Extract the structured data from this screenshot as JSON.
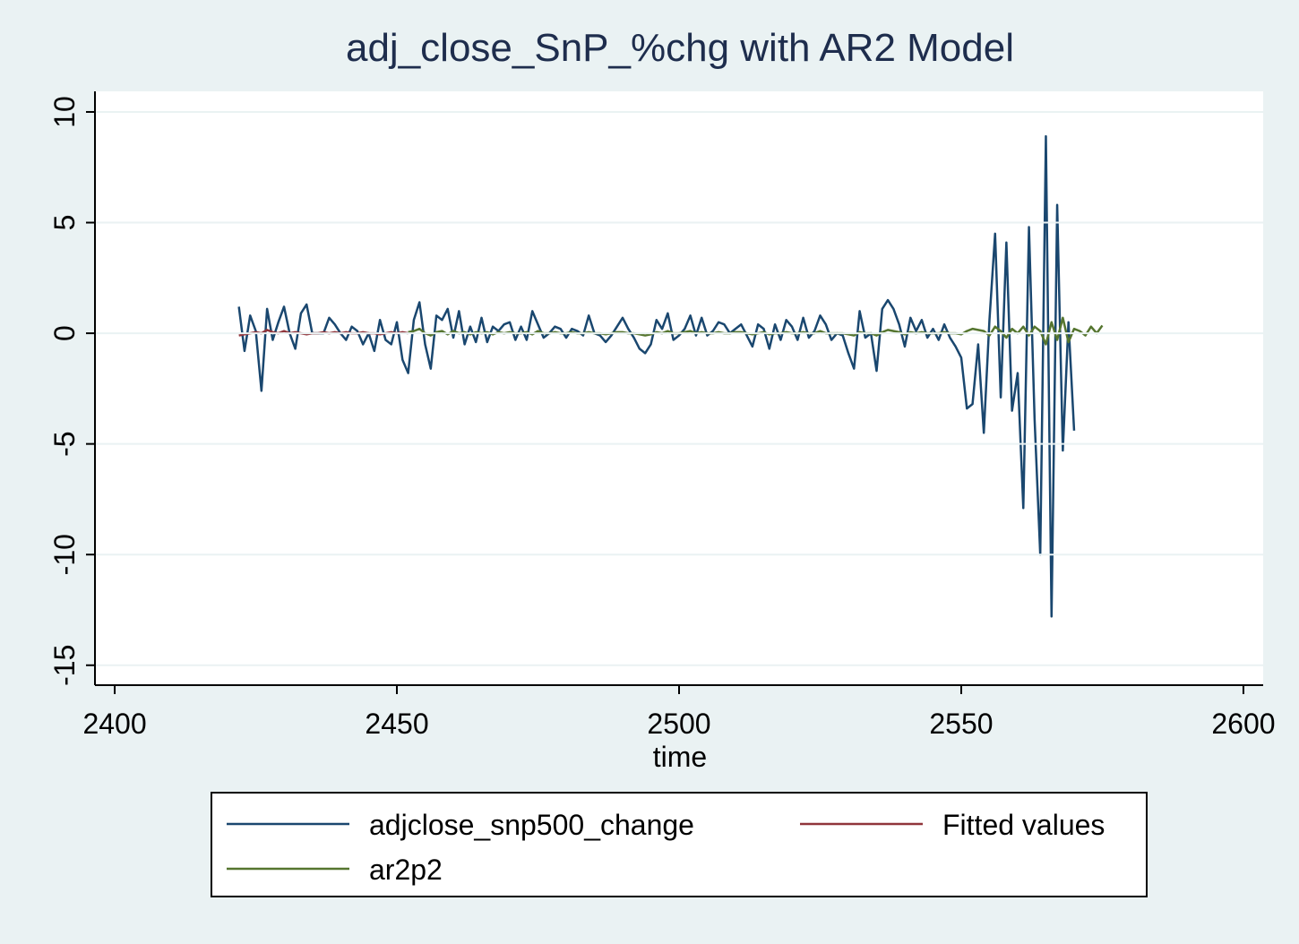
{
  "chart_data": {
    "type": "line",
    "title": "adj_close_SnP_%chg with AR2 Model",
    "x_label": "time",
    "x": [
      2422,
      2423,
      2424,
      2425,
      2426,
      2427,
      2428,
      2429,
      2430,
      2431,
      2432,
      2433,
      2434,
      2435,
      2436,
      2437,
      2438,
      2439,
      2440,
      2441,
      2442,
      2443,
      2444,
      2445,
      2446,
      2447,
      2448,
      2449,
      2450,
      2451,
      2452,
      2453,
      2454,
      2455,
      2456,
      2457,
      2458,
      2459,
      2460,
      2461,
      2462,
      2463,
      2464,
      2465,
      2466,
      2467,
      2468,
      2469,
      2470,
      2471,
      2472,
      2473,
      2474,
      2475,
      2476,
      2477,
      2478,
      2479,
      2480,
      2481,
      2482,
      2483,
      2484,
      2485,
      2486,
      2487,
      2488,
      2489,
      2490,
      2491,
      2492,
      2493,
      2494,
      2495,
      2496,
      2497,
      2498,
      2499,
      2500,
      2501,
      2502,
      2503,
      2504,
      2505,
      2506,
      2507,
      2508,
      2509,
      2510,
      2511,
      2512,
      2513,
      2514,
      2515,
      2516,
      2517,
      2518,
      2519,
      2520,
      2521,
      2522,
      2523,
      2524,
      2525,
      2526,
      2527,
      2528,
      2529,
      2530,
      2531,
      2532,
      2533,
      2534,
      2535,
      2536,
      2537,
      2538,
      2539,
      2540,
      2541,
      2542,
      2543,
      2544,
      2545,
      2546,
      2547,
      2548,
      2549,
      2550,
      2551,
      2552,
      2553,
      2554,
      2555,
      2556,
      2557,
      2558,
      2559,
      2560,
      2561,
      2562,
      2563,
      2564,
      2565,
      2566,
      2567,
      2568,
      2569,
      2570,
      2571,
      2572,
      2573,
      2574,
      2575
    ],
    "series": [
      {
        "name": "adjclose_snp500_change",
        "color": "#1a476f",
        "values": [
          1.2,
          -0.8,
          0.8,
          0.1,
          -2.6,
          1.1,
          -0.3,
          0.5,
          1.2,
          0.0,
          -0.7,
          0.9,
          1.3,
          0.0,
          0.0,
          0.0,
          0.7,
          0.4,
          0.0,
          -0.3,
          0.3,
          0.1,
          -0.5,
          0.0,
          -0.8,
          0.6,
          -0.3,
          -0.5,
          0.5,
          -1.2,
          -1.8,
          0.6,
          1.4,
          -0.5,
          -1.6,
          0.8,
          0.6,
          1.1,
          -0.2,
          1.0,
          -0.5,
          0.3,
          -0.4,
          0.7,
          -0.4,
          0.3,
          0.1,
          0.4,
          0.5,
          -0.3,
          0.3,
          -0.3,
          1.0,
          0.4,
          -0.2,
          0.0,
          0.3,
          0.2,
          -0.2,
          0.2,
          0.1,
          -0.1,
          0.8,
          0.0,
          -0.1,
          -0.4,
          -0.1,
          0.3,
          0.7,
          0.2,
          -0.2,
          -0.7,
          -0.9,
          -0.5,
          0.6,
          0.2,
          0.9,
          -0.3,
          -0.1,
          0.2,
          0.8,
          -0.1,
          0.7,
          -0.1,
          0.1,
          0.5,
          0.4,
          0.0,
          0.2,
          0.4,
          -0.1,
          -0.6,
          0.4,
          0.2,
          -0.7,
          0.4,
          -0.3,
          0.6,
          0.3,
          -0.3,
          0.7,
          -0.2,
          0.1,
          0.8,
          0.4,
          -0.3,
          0.0,
          -0.1,
          -0.9,
          -1.6,
          1.0,
          -0.2,
          0.0,
          -1.7,
          1.1,
          1.5,
          1.1,
          0.4,
          -0.6,
          0.7,
          0.1,
          0.6,
          -0.2,
          0.2,
          -0.3,
          0.4,
          -0.2,
          -0.6,
          -1.1,
          -3.4,
          -3.2,
          -0.5,
          -4.5,
          0.6,
          4.5,
          -2.9,
          4.1,
          -3.5,
          -1.8,
          -7.9,
          4.8,
          -3.9,
          -10.0,
          8.9,
          -12.8,
          5.8,
          -5.3,
          0.5,
          -4.4,
          null,
          null,
          null,
          null,
          null
        ]
      },
      {
        "name": "Fitted values",
        "color": "#90353b",
        "values": [
          -0.1,
          -0.05,
          0.0,
          0.05,
          0.0,
          0.15,
          0.05,
          0.0,
          0.1,
          0.0,
          0.05,
          0.0,
          -0.05,
          0.0,
          0.0,
          0.05,
          0.0,
          0.05,
          0.0,
          0.05,
          0.0,
          0.0,
          0.05,
          0.0,
          0.0,
          -0.05,
          0.0,
          0.05,
          0.0,
          0.05,
          0.0,
          null,
          null,
          null,
          null,
          null,
          null,
          null,
          null,
          null,
          null,
          null,
          null,
          null,
          null,
          null,
          null,
          null,
          null,
          null,
          null,
          null,
          null,
          null,
          null,
          null,
          null,
          null,
          null,
          null,
          null,
          null,
          null,
          null,
          null,
          null,
          null,
          null,
          null,
          null,
          null,
          null,
          null,
          null,
          null,
          null,
          null,
          null,
          null,
          null,
          null,
          null,
          null,
          null,
          null,
          null,
          null,
          null,
          null,
          null,
          null,
          null,
          null,
          null,
          null,
          null,
          null,
          null,
          null,
          null,
          null,
          null,
          null,
          null,
          null,
          null,
          null,
          null,
          null,
          null,
          null,
          null,
          null,
          null,
          null,
          null,
          null,
          null,
          null,
          null,
          null,
          null,
          null,
          null,
          null,
          null,
          null,
          null,
          null,
          null,
          null,
          null,
          null,
          null,
          null,
          null,
          null,
          null,
          null,
          null,
          null,
          null,
          null,
          null,
          null,
          null,
          null,
          null,
          null,
          null,
          null,
          null,
          null,
          null
        ]
      },
      {
        "name": "ar2p2",
        "color": "#55752f",
        "values": [
          null,
          null,
          null,
          null,
          null,
          null,
          null,
          null,
          null,
          null,
          null,
          null,
          null,
          null,
          null,
          null,
          null,
          null,
          null,
          null,
          null,
          null,
          null,
          null,
          null,
          null,
          null,
          null,
          null,
          null,
          0.05,
          0.1,
          0.2,
          0.0,
          -0.1,
          0.05,
          0.1,
          -0.05,
          0.1,
          0.0,
          0.05,
          -0.05,
          0.05,
          0.0,
          0.05,
          -0.05,
          0.05,
          0.0,
          0.05,
          0.0,
          0.0,
          0.05,
          -0.05,
          0.1,
          0.0,
          0.0,
          0.05,
          0.0,
          0.0,
          0.05,
          0.0,
          0.0,
          0.05,
          0.0,
          0.0,
          -0.05,
          0.0,
          0.05,
          0.05,
          0.0,
          0.0,
          -0.05,
          -0.1,
          -0.05,
          0.05,
          0.0,
          0.1,
          0.0,
          0.0,
          0.05,
          0.1,
          0.0,
          0.05,
          0.0,
          0.0,
          0.05,
          0.0,
          0.0,
          0.05,
          0.05,
          0.0,
          -0.05,
          0.0,
          0.05,
          -0.05,
          0.0,
          0.0,
          0.05,
          0.0,
          0.0,
          0.05,
          0.0,
          0.0,
          0.1,
          0.0,
          0.0,
          0.0,
          0.0,
          -0.05,
          -0.1,
          0.05,
          0.0,
          0.0,
          -0.1,
          0.05,
          0.15,
          0.1,
          0.05,
          -0.05,
          0.05,
          0.0,
          0.05,
          0.0,
          0.0,
          0.0,
          0.05,
          0.0,
          0.0,
          -0.05,
          0.1,
          0.2,
          0.15,
          0.1,
          -0.1,
          0.3,
          0.1,
          -0.2,
          0.2,
          0.0,
          0.3,
          -0.1,
          0.3,
          0.1,
          -0.5,
          0.5,
          -0.3,
          0.7,
          -0.4,
          0.2,
          0.1,
          -0.1,
          0.3,
          0.0,
          0.35
        ]
      }
    ],
    "xlim": [
      2396.5,
      2603.5
    ],
    "xticks": [
      2400,
      2450,
      2500,
      2550,
      2600
    ],
    "ylim": [
      -15.9,
      10.93
    ],
    "yticks": [
      -15,
      -10,
      -5,
      0,
      5,
      10
    ],
    "grid": true
  }
}
